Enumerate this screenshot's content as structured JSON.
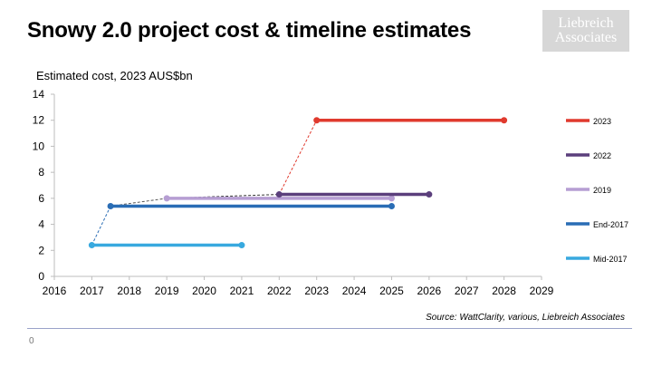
{
  "slide": {
    "title": "Snowy 2.0 project cost & timeline estimates",
    "logo_line1": "Liebreich",
    "logo_line2": "Associates",
    "source": "Source: WattClarity, various, Liebreich Associates",
    "page_number": "0"
  },
  "chart_data": {
    "type": "line",
    "title": "",
    "ylabel": "Estimated cost, 2023 AUS$bn",
    "xlabel": "",
    "xlim": [
      2016,
      2029
    ],
    "ylim": [
      0,
      14
    ],
    "xticks": [
      "2016",
      "2017",
      "2018",
      "2019",
      "2020",
      "2021",
      "2022",
      "2023",
      "2024",
      "2025",
      "2026",
      "2027",
      "2028",
      "2029"
    ],
    "yticks": [
      "0",
      "2",
      "4",
      "6",
      "8",
      "10",
      "12",
      "14"
    ],
    "grid": false,
    "legend_position": "right",
    "series": [
      {
        "name": "2023",
        "color": "#e03a2e",
        "points": [
          [
            2023,
            12
          ],
          [
            2028,
            12
          ]
        ]
      },
      {
        "name": "2022",
        "color": "#5b3f7c",
        "points": [
          [
            2022,
            6.3
          ],
          [
            2026,
            6.3
          ]
        ]
      },
      {
        "name": "2019",
        "color": "#b69ed3",
        "points": [
          [
            2019,
            6
          ],
          [
            2025,
            6
          ]
        ]
      },
      {
        "name": "End-2017",
        "color": "#2a6db5",
        "points": [
          [
            2017.5,
            5.4
          ],
          [
            2025,
            5.4
          ]
        ]
      },
      {
        "name": "Mid-2017",
        "color": "#38a9df",
        "points": [
          [
            2017,
            2.4
          ],
          [
            2021,
            2.4
          ]
        ]
      }
    ],
    "connectors": [
      {
        "from": [
          2017,
          2.4
        ],
        "to": [
          2017.5,
          5.4
        ],
        "color": "#2a6db5"
      },
      {
        "from": [
          2017.5,
          5.4
        ],
        "to": [
          2019,
          6
        ],
        "color": "#555555"
      },
      {
        "from": [
          2019,
          6
        ],
        "to": [
          2022,
          6.3
        ],
        "color": "#333333"
      },
      {
        "from": [
          2022,
          6.3
        ],
        "to": [
          2023,
          12
        ],
        "color": "#e03a2e"
      }
    ]
  }
}
